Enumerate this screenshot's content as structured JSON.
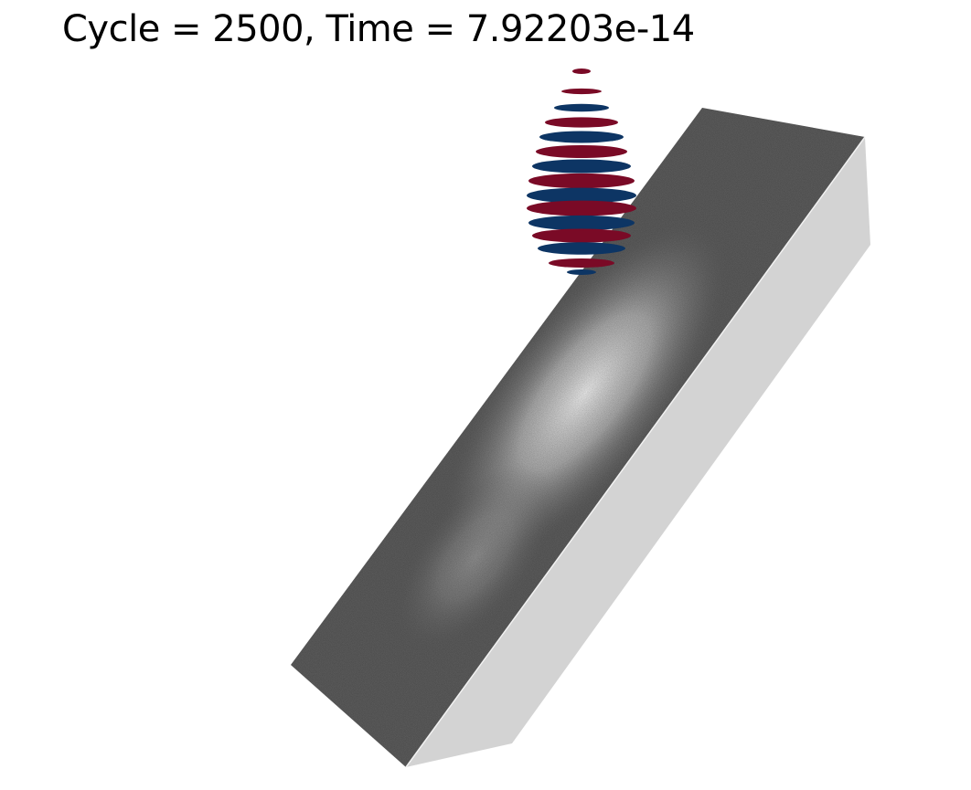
{
  "annotation": {
    "time_label": "Cycle = 2500, Time = 7.92203e-14"
  },
  "colors": {
    "background": "#ffffff",
    "slab_top": "#5a5a5a",
    "slab_side": "#d3d3d3",
    "wave_red": "#7a0a26",
    "wave_blue": "#0d3564",
    "hot_spot": "#e8e8e8"
  }
}
